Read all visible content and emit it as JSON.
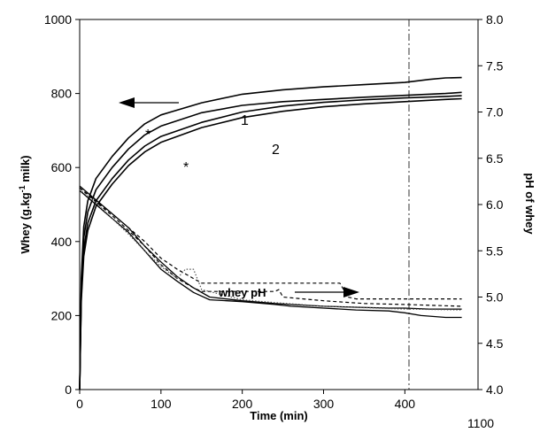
{
  "chart_data": {
    "type": "line",
    "xlabel": "Time (min)",
    "ylabel_left": "Whey (g.kg-1 milk)",
    "ylabel_left_parts": {
      "main": "Whey (g.kg",
      "sup": "-1",
      "tail": " milk)"
    },
    "ylabel_right": "pH of whey",
    "x_ticks": [
      "0",
      "100",
      "200",
      "300",
      "400",
      "1100"
    ],
    "y_left_ticks": [
      "0",
      "200",
      "400",
      "600",
      "800",
      "1000"
    ],
    "y_right_ticks": [
      "4.0",
      "4.5",
      "5.0",
      "5.5",
      "6.0",
      "6.5",
      "7.0",
      "7.5",
      "8.0"
    ],
    "ylim_left": [
      0,
      1000
    ],
    "ylim_right": [
      4.0,
      8.0
    ],
    "grid": false,
    "legend": "none",
    "annotations": {
      "curve1": "1",
      "curve2": "2",
      "star_a": "*",
      "star_b": "*",
      "whey_ph": "whey pH"
    },
    "series": [
      {
        "name": "1",
        "axis": "left",
        "style": "solid",
        "points": [
          [
            0,
            0
          ],
          [
            2,
            300
          ],
          [
            5,
            440
          ],
          [
            10,
            510
          ],
          [
            20,
            570
          ],
          [
            40,
            630
          ],
          [
            60,
            680
          ],
          [
            80,
            718
          ],
          [
            100,
            742
          ],
          [
            150,
            775
          ],
          [
            200,
            798
          ],
          [
            250,
            810
          ],
          [
            300,
            818
          ],
          [
            350,
            824
          ],
          [
            400,
            830
          ],
          [
            430,
            838
          ],
          [
            450,
            842
          ],
          [
            470,
            843
          ]
        ]
      },
      {
        "name": "",
        "axis": "left",
        "style": "solid",
        "points": [
          [
            0,
            0
          ],
          [
            2,
            270
          ],
          [
            5,
            410
          ],
          [
            10,
            480
          ],
          [
            20,
            540
          ],
          [
            40,
            600
          ],
          [
            60,
            650
          ],
          [
            80,
            688
          ],
          [
            100,
            712
          ],
          [
            150,
            748
          ],
          [
            200,
            768
          ],
          [
            250,
            778
          ],
          [
            300,
            784
          ],
          [
            350,
            790
          ],
          [
            400,
            795
          ],
          [
            450,
            800
          ],
          [
            470,
            803
          ]
        ]
      },
      {
        "name": "2",
        "axis": "left",
        "style": "solid",
        "points": [
          [
            0,
            0
          ],
          [
            2,
            250
          ],
          [
            5,
            380
          ],
          [
            10,
            450
          ],
          [
            20,
            510
          ],
          [
            40,
            570
          ],
          [
            60,
            620
          ],
          [
            80,
            658
          ],
          [
            100,
            684
          ],
          [
            150,
            722
          ],
          [
            200,
            750
          ],
          [
            250,
            766
          ],
          [
            300,
            776
          ],
          [
            350,
            783
          ],
          [
            400,
            788
          ],
          [
            450,
            792
          ],
          [
            470,
            794
          ]
        ]
      },
      {
        "name": "",
        "axis": "left",
        "style": "solid",
        "points": [
          [
            0,
            0
          ],
          [
            2,
            240
          ],
          [
            5,
            360
          ],
          [
            10,
            430
          ],
          [
            20,
            495
          ],
          [
            40,
            555
          ],
          [
            60,
            605
          ],
          [
            80,
            642
          ],
          [
            100,
            668
          ],
          [
            150,
            708
          ],
          [
            200,
            735
          ],
          [
            250,
            752
          ],
          [
            300,
            764
          ],
          [
            350,
            772
          ],
          [
            400,
            778
          ],
          [
            450,
            784
          ],
          [
            470,
            786
          ]
        ]
      },
      {
        "name": "",
        "axis": "right",
        "style": "solid",
        "points": [
          [
            0,
            6.15
          ],
          [
            20,
            6.0
          ],
          [
            40,
            5.85
          ],
          [
            60,
            5.7
          ],
          [
            80,
            5.5
          ],
          [
            100,
            5.3
          ],
          [
            120,
            5.17
          ],
          [
            140,
            5.05
          ],
          [
            160,
            4.97
          ],
          [
            200,
            4.95
          ],
          [
            240,
            4.92
          ],
          [
            260,
            4.9
          ],
          [
            300,
            4.88
          ],
          [
            340,
            4.86
          ],
          [
            380,
            4.85
          ],
          [
            400,
            4.83
          ],
          [
            420,
            4.8
          ],
          [
            450,
            4.78
          ],
          [
            470,
            4.78
          ]
        ]
      },
      {
        "name": "",
        "axis": "right",
        "style": "solid",
        "points": [
          [
            0,
            6.2
          ],
          [
            20,
            6.05
          ],
          [
            40,
            5.9
          ],
          [
            60,
            5.75
          ],
          [
            80,
            5.55
          ],
          [
            100,
            5.38
          ],
          [
            120,
            5.22
          ],
          [
            140,
            5.1
          ],
          [
            160,
            5.0
          ],
          [
            200,
            4.96
          ],
          [
            240,
            4.93
          ],
          [
            260,
            4.92
          ],
          [
            300,
            4.9
          ],
          [
            340,
            4.89
          ],
          [
            380,
            4.88
          ],
          [
            400,
            4.88
          ],
          [
            430,
            4.87
          ],
          [
            470,
            4.87
          ]
        ]
      },
      {
        "name": "",
        "axis": "right",
        "style": "dashed",
        "points": [
          [
            0,
            6.18
          ],
          [
            20,
            6.03
          ],
          [
            40,
            5.88
          ],
          [
            60,
            5.72
          ],
          [
            80,
            5.55
          ],
          [
            100,
            5.35
          ],
          [
            120,
            5.2
          ],
          [
            140,
            5.1
          ],
          [
            150,
            5.06
          ],
          [
            240,
            5.06
          ],
          [
            245,
            5.08
          ],
          [
            250,
            5.0
          ],
          [
            300,
            4.96
          ],
          [
            350,
            4.93
          ],
          [
            400,
            4.92
          ],
          [
            470,
            4.9
          ]
        ]
      },
      {
        "name": "",
        "axis": "right",
        "style": "dashed",
        "points": [
          [
            0,
            6.18
          ],
          [
            20,
            6.04
          ],
          [
            40,
            5.9
          ],
          [
            60,
            5.75
          ],
          [
            80,
            5.6
          ],
          [
            100,
            5.42
          ],
          [
            120,
            5.3
          ],
          [
            140,
            5.2
          ],
          [
            150,
            5.15
          ],
          [
            200,
            5.15
          ],
          [
            320,
            5.15
          ],
          [
            330,
            5.0
          ],
          [
            340,
            4.98
          ],
          [
            400,
            4.98
          ],
          [
            470,
            4.98
          ]
        ]
      },
      {
        "name": "",
        "axis": "right",
        "style": "dotted",
        "points": [
          [
            0,
            6.16
          ],
          [
            20,
            6.02
          ],
          [
            40,
            5.85
          ],
          [
            60,
            5.68
          ],
          [
            80,
            5.5
          ],
          [
            100,
            5.33
          ],
          [
            120,
            5.2
          ],
          [
            130,
            5.3
          ],
          [
            140,
            5.3
          ],
          [
            150,
            5.08
          ],
          [
            200,
            4.97
          ],
          [
            240,
            4.94
          ],
          [
            300,
            4.9
          ],
          [
            400,
            4.87
          ],
          [
            470,
            4.86
          ]
        ]
      }
    ]
  }
}
